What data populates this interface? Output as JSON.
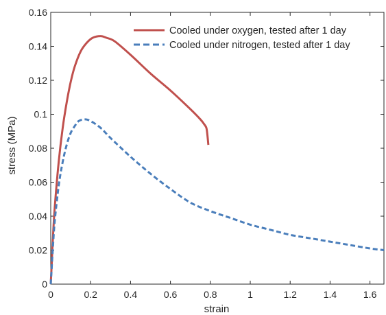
{
  "chart_data": {
    "type": "line",
    "title": "",
    "xlabel": "strain",
    "ylabel": "stress (MPa)",
    "xlim": [
      0,
      1.67
    ],
    "ylim": [
      0,
      0.16
    ],
    "x_ticks": [
      0,
      0.2,
      0.4,
      0.6,
      0.8,
      1,
      1.2,
      1.4,
      1.6
    ],
    "x_tick_labels": [
      "0",
      "0.2",
      "0.4",
      "0.6",
      "0.8",
      "1",
      "1.2",
      "1.4",
      "1.6"
    ],
    "y_ticks": [
      0,
      0.02,
      0.04,
      0.06,
      0.08,
      0.1,
      0.12,
      0.14,
      0.16
    ],
    "y_tick_labels": [
      "0",
      "0.02",
      "0.04",
      "0.06",
      "0.08",
      "0.1",
      "0.12",
      "0.14",
      "0.16"
    ],
    "grid": false,
    "legend_position": "top-right",
    "series": [
      {
        "name": "Cooled under oxygen, tested after 1 day",
        "color": "#c0504d",
        "line_style": "solid",
        "x": [
          0,
          0.005,
          0.01,
          0.02,
          0.04,
          0.06,
          0.08,
          0.1,
          0.12,
          0.15,
          0.18,
          0.21,
          0.25,
          0.28,
          0.32,
          0.4,
          0.5,
          0.6,
          0.7,
          0.75,
          0.77,
          0.78,
          0.785,
          0.79
        ],
        "y": [
          0,
          0.012,
          0.025,
          0.045,
          0.072,
          0.092,
          0.107,
          0.119,
          0.128,
          0.137,
          0.142,
          0.145,
          0.146,
          0.145,
          0.143,
          0.135,
          0.124,
          0.114,
          0.103,
          0.097,
          0.094,
          0.092,
          0.088,
          0.082
        ]
      },
      {
        "name": "Cooled under nitrogen, tested after 1 day",
        "color": "#4a7ebb",
        "line_style": "dashed",
        "x": [
          0,
          0.005,
          0.01,
          0.02,
          0.04,
          0.06,
          0.08,
          0.1,
          0.12,
          0.14,
          0.17,
          0.2,
          0.25,
          0.3,
          0.4,
          0.5,
          0.6,
          0.7,
          0.8,
          0.9,
          1.0,
          1.1,
          1.2,
          1.3,
          1.4,
          1.5,
          1.6,
          1.67
        ],
        "y": [
          0,
          0.01,
          0.02,
          0.037,
          0.058,
          0.072,
          0.082,
          0.089,
          0.093,
          0.096,
          0.097,
          0.096,
          0.092,
          0.086,
          0.075,
          0.065,
          0.056,
          0.048,
          0.043,
          0.039,
          0.035,
          0.032,
          0.029,
          0.027,
          0.025,
          0.023,
          0.021,
          0.02
        ]
      }
    ]
  }
}
